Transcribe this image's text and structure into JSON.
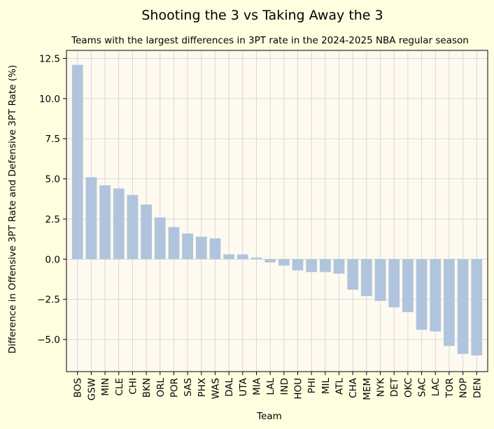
{
  "colors": {
    "figure_background": "#ffffe0",
    "plot_background": "#fffaf0",
    "bar_fill": "#b0c4de",
    "grid": "#cfcfcf"
  },
  "chart_data": {
    "type": "bar",
    "title": "Shooting the 3 vs Taking Away the 3",
    "subtitle": "Teams with the largest differences in 3PT rate in the 2024-2025 NBA regular season",
    "xlabel": "Team",
    "ylabel": "Difference in Offensive 3PT Rate and Defensive 3PT Rate (%)",
    "ylim": [
      -7,
      13
    ],
    "yticks": [
      -5.0,
      -2.5,
      0.0,
      2.5,
      5.0,
      7.5,
      10.0,
      12.5
    ],
    "ytick_labels": [
      "−5.0",
      "−2.5",
      "0.0",
      "2.5",
      "5.0",
      "7.5",
      "10.0",
      "12.5"
    ],
    "grid": true,
    "categories": [
      "BOS",
      "GSW",
      "MIN",
      "CLE",
      "CHI",
      "BKN",
      "ORL",
      "POR",
      "SAS",
      "PHX",
      "WAS",
      "DAL",
      "UTA",
      "MIA",
      "LAL",
      "IND",
      "HOU",
      "PHI",
      "MIL",
      "ATL",
      "CHA",
      "MEM",
      "NYK",
      "DET",
      "OKC",
      "SAC",
      "LAC",
      "TOR",
      "NOP",
      "DEN"
    ],
    "values": [
      12.1,
      5.1,
      4.6,
      4.4,
      4.0,
      3.4,
      2.6,
      2.0,
      1.6,
      1.4,
      1.3,
      0.3,
      0.3,
      0.1,
      -0.2,
      -0.4,
      -0.7,
      -0.8,
      -0.8,
      -0.9,
      -1.9,
      -2.3,
      -2.6,
      -3.0,
      -3.3,
      -4.4,
      -4.5,
      -5.4,
      -5.9,
      -6.0
    ]
  }
}
